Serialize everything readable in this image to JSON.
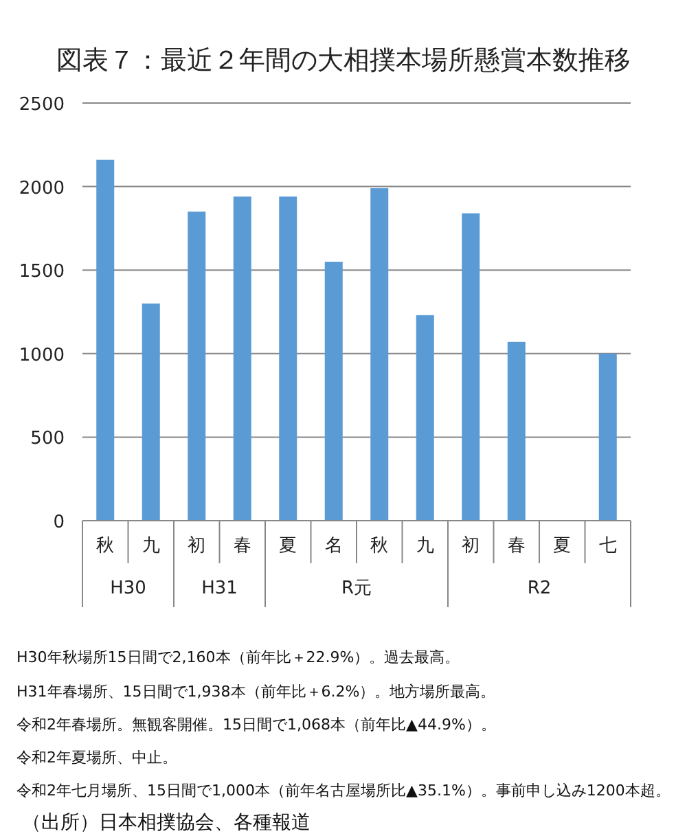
{
  "chart_data": [
    {
      "type": "bar",
      "title": "図表７：最近２年間の大相撲本場所懸賞本数推移",
      "xlabel": "H30",
      "categories": [
        "秋",
        "九"
      ],
      "values": [
        2160,
        1300
      ],
      "color": "#5b9bd5",
      "ylim": [
        0,
        2500
      ],
      "yticks": [
        0,
        500,
        1000,
        1500,
        2000,
        2500
      ],
      "grid": "y"
    },
    {
      "type": "bar",
      "xlabel": "H31",
      "categories": [
        "初",
        "春"
      ],
      "values": [
        1850,
        1940
      ],
      "color": "#5b9bd5",
      "ylim": [
        0,
        2500
      ],
      "yticks": [
        0,
        500,
        1000,
        1500,
        2000,
        2500
      ],
      "grid": "y",
      "tick_labels": "x"
    },
    {
      "type": "bar",
      "xlabel": "R元",
      "categories": [
        "夏",
        "名",
        "秋",
        "九"
      ],
      "values": [
        1940,
        1550,
        1990,
        1230
      ],
      "color": "#5b9bd5",
      "ylim": [
        0,
        2500
      ],
      "yticks": [
        0,
        500,
        1000,
        1500,
        2000,
        2500
      ],
      "grid": "y",
      "tick_labels": "x"
    },
    {
      "type": "bar",
      "xlabel": "R2",
      "categories": [
        "初",
        "春",
        "夏",
        "七"
      ],
      "values": [
        1840,
        1070,
        null,
        1000
      ],
      "color": "#5b9bd5",
      "ylim": [
        0,
        2500
      ],
      "yticks": [
        0,
        500,
        1000,
        1500,
        2000,
        2500
      ],
      "grid": "y",
      "tick_labels": "x",
      "annotations": [
        "H30年秋場所15日間で2,160本（前年比＋22.9%）。過去最高。",
        "H31年春場所、15日間で1,938本（前年比＋6.2%）。地方場所最高。",
        "令和2年春場所。無観客開催。15日間で1,068本（前年比▲44.9%）。",
        "令和2年夏場所、中止。",
        "令和2年七月場所、15日間で1,000本（前年名古屋場所比▲35.1%）。事前申し込み1200本超。",
        "（出所）日本相撲協会、各種報道"
      ]
    }
  ]
}
